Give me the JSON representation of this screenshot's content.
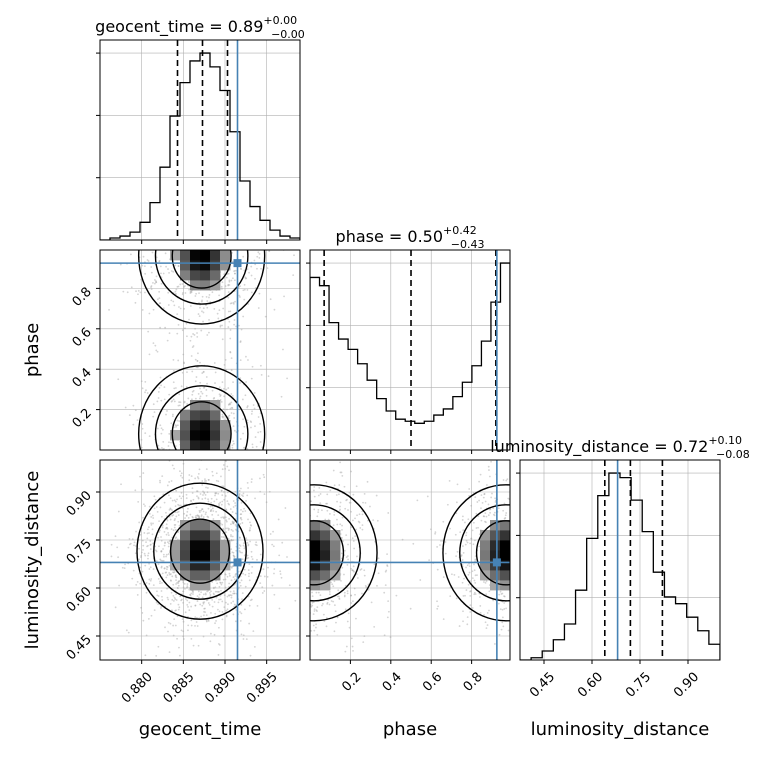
{
  "chart_data": {
    "type": "corner",
    "parameters": [
      {
        "name": "geocent_time",
        "xlabel": "geocent_time",
        "ylabel": "",
        "title_main": "geocent_time = 0.89",
        "title_sup": "+0.00",
        "title_sub": "−0.00",
        "lim": [
          0.875,
          0.899
        ],
        "ticks": [
          0.88,
          0.885,
          0.89,
          0.895
        ],
        "tick_labels": [
          "0.880",
          "0.885",
          "0.890",
          "0.895"
        ],
        "quantiles": [
          0.8843,
          0.8873,
          0.8903
        ],
        "truth": 0.8915
      },
      {
        "name": "phase",
        "xlabel": "phase",
        "ylabel": "phase",
        "title_main": "phase = 0.50",
        "title_sup": "+0.42",
        "title_sub": "−0.43",
        "lim": [
          0.0,
          0.99
        ],
        "ticks": [
          0.2,
          0.4,
          0.6,
          0.8
        ],
        "tick_labels": [
          "0.2",
          "0.4",
          "0.6",
          "0.8"
        ],
        "quantiles": [
          0.07,
          0.5,
          0.92
        ],
        "truth": 0.925
      },
      {
        "name": "luminosity_distance",
        "xlabel": "luminosity_distance",
        "ylabel": "luminosity_distance",
        "title_main": "luminosity_distance = 0.72",
        "title_sup": "+0.10",
        "title_sub": "−0.08",
        "lim": [
          0.375,
          1.0
        ],
        "ticks": [
          0.45,
          0.6,
          0.75,
          0.9
        ],
        "tick_labels": [
          "0.45",
          "0.60",
          "0.75",
          "0.90"
        ],
        "quantiles": [
          0.64,
          0.72,
          0.82
        ],
        "truth": 0.68
      }
    ],
    "histograms": [
      {
        "param": "geocent_time",
        "edges_range": [
          0.875,
          0.899
        ],
        "counts": [
          0,
          1,
          2,
          4,
          9,
          19,
          37,
          63,
          80,
          91,
          95,
          88,
          76,
          55,
          30,
          17,
          10,
          5,
          2,
          1
        ]
      },
      {
        "param": "phase",
        "edges_range": [
          0.0,
          0.99
        ],
        "counts": [
          84,
          80,
          62,
          54,
          49,
          42,
          34,
          25,
          19,
          15,
          14,
          13,
          14,
          17,
          20,
          26,
          33,
          41,
          53,
          72,
          91
        ]
      },
      {
        "param": "luminosity_distance",
        "edges_range": [
          0.375,
          1.0
        ],
        "counts": [
          0,
          1,
          4,
          9,
          16,
          31,
          54,
          73,
          83,
          81,
          71,
          57,
          39,
          28,
          25,
          19,
          13,
          7
        ]
      }
    ],
    "pairs": [
      {
        "x": "geocent_time",
        "y": "phase",
        "modes": [
          {
            "x": 0.8872,
            "y": 0.08
          },
          {
            "x": 0.8872,
            "y": 0.96
          }
        ]
      },
      {
        "x": "geocent_time",
        "y": "luminosity_distance",
        "modes": [
          {
            "x": 0.887,
            "y": 0.715
          }
        ]
      },
      {
        "x": "phase",
        "y": "luminosity_distance",
        "modes": [
          {
            "x": 0.02,
            "y": 0.71
          },
          {
            "x": 0.97,
            "y": 0.71
          }
        ]
      }
    ],
    "colors": {
      "hist": "#000000",
      "truth": "#4682b4",
      "grid": "#b0b0b0",
      "scatter": "#aaaaaa"
    },
    "grid": true,
    "legend": "none"
  }
}
